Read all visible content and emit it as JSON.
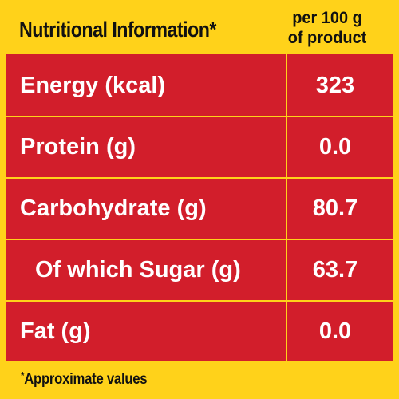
{
  "header": {
    "title": "Nutritional Information*",
    "per_line1": "per 100 g",
    "per_line2": "of product"
  },
  "rows": [
    {
      "label": "Energy (kcal)",
      "value": "323"
    },
    {
      "label": "Protein (g)",
      "value": "0.0"
    },
    {
      "label": "Carbohydrate (g)",
      "value": "80.7"
    },
    {
      "label": "Of which Sugar (g)",
      "value": "63.7"
    },
    {
      "label": "Fat (g)",
      "value": "0.0"
    }
  ],
  "footnote": {
    "marker": "*",
    "text": "Approximate values"
  },
  "colors": {
    "background": "#FFD21A",
    "table": "#D21E2B",
    "table_text": "#FFFFFF",
    "header_text": "#111111"
  }
}
